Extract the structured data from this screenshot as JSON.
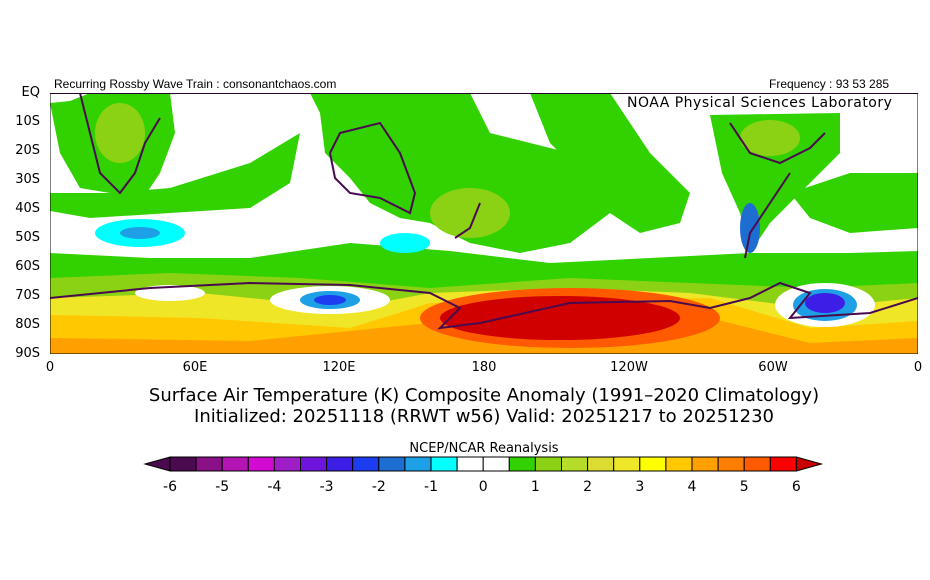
{
  "header": {
    "left_text": "Recurring Rossby Wave Train : consonantchaos.com",
    "right_text": "Frequency : 93 53 285",
    "lab_text": "NOAA Physical Sciences Laboratory"
  },
  "titles": {
    "line1": "Surface Air Temperature (K) Composite Anomaly (1991–2020 Climatology)",
    "line2": "Initialized: 20251118 (RRWT w56) Valid: 20251217 to 20251230"
  },
  "chart_data": {
    "type": "heatmap",
    "variable": "Surface Air Temperature (K) Composite Anomaly",
    "y_ticks": [
      "EQ",
      "10S",
      "20S",
      "30S",
      "40S",
      "50S",
      "60S",
      "70S",
      "80S",
      "90S"
    ],
    "x_ticks": [
      "0",
      "60E",
      "120E",
      "180",
      "120W",
      "60W",
      "0"
    ],
    "lat_range": [
      -90,
      0
    ],
    "lon_range": [
      0,
      360
    ],
    "colorbar": {
      "label": "NCEP/NCAR Reanalysis",
      "min": -6,
      "max": 6,
      "step": 0.5,
      "tick_labels": [
        "-6",
        "-5",
        "-4",
        "-3",
        "-2",
        "-1",
        "0",
        "1",
        "2",
        "3",
        "4",
        "5",
        "6"
      ],
      "colors": [
        "#4a0a4e",
        "#8a1088",
        "#b414b4",
        "#d20ad2",
        "#a01ec8",
        "#6e14dc",
        "#3c1ee6",
        "#1e3cf0",
        "#1e6ed2",
        "#1ea0e6",
        "#00ffff",
        "#ffffff",
        "#ffffff",
        "#32d200",
        "#8cd214",
        "#b4dc28",
        "#dcdc32",
        "#f0e628",
        "#ffff00",
        "#ffc800",
        "#ffa000",
        "#ff7d00",
        "#ff5a00",
        "#ff0000"
      ],
      "under_color": "#4a0a4e",
      "over_color": "#c80000"
    }
  }
}
